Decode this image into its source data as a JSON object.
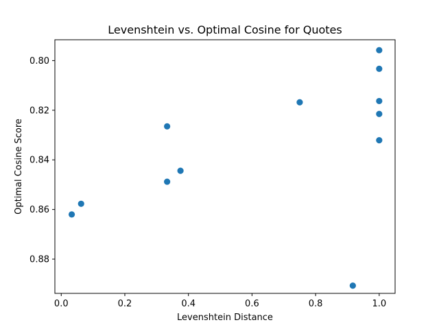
{
  "chart_data": {
    "type": "scatter",
    "title": "Levenshtein vs. Optimal Cosine for Quotes",
    "xlabel": "Levenshtein Distance",
    "ylabel": "Optimal Cosine Score",
    "xlim": [
      -0.02,
      1.05
    ],
    "ylim": [
      0.8938,
      0.7916
    ],
    "y_inverted": true,
    "grid": false,
    "xticks": [
      0.0,
      0.2,
      0.4,
      0.6,
      0.8,
      1.0
    ],
    "xtick_labels": [
      "0.0",
      "0.2",
      "0.4",
      "0.6",
      "0.8",
      "1.0"
    ],
    "yticks": [
      0.8,
      0.82,
      0.84,
      0.86,
      0.88
    ],
    "ytick_labels": [
      "0.80",
      "0.82",
      "0.84",
      "0.86",
      "0.88"
    ],
    "marker_color": "#1f77b4",
    "points": [
      {
        "x": 0.033,
        "y": 0.862
      },
      {
        "x": 0.0625,
        "y": 0.8577
      },
      {
        "x": 0.333,
        "y": 0.8265
      },
      {
        "x": 0.333,
        "y": 0.8488
      },
      {
        "x": 0.375,
        "y": 0.8444
      },
      {
        "x": 0.75,
        "y": 0.8168
      },
      {
        "x": 0.917,
        "y": 0.8907
      },
      {
        "x": 1.0,
        "y": 0.7958
      },
      {
        "x": 1.0,
        "y": 0.8033
      },
      {
        "x": 1.0,
        "y": 0.8163
      },
      {
        "x": 1.0,
        "y": 0.8215
      },
      {
        "x": 1.0,
        "y": 0.8321
      }
    ]
  }
}
